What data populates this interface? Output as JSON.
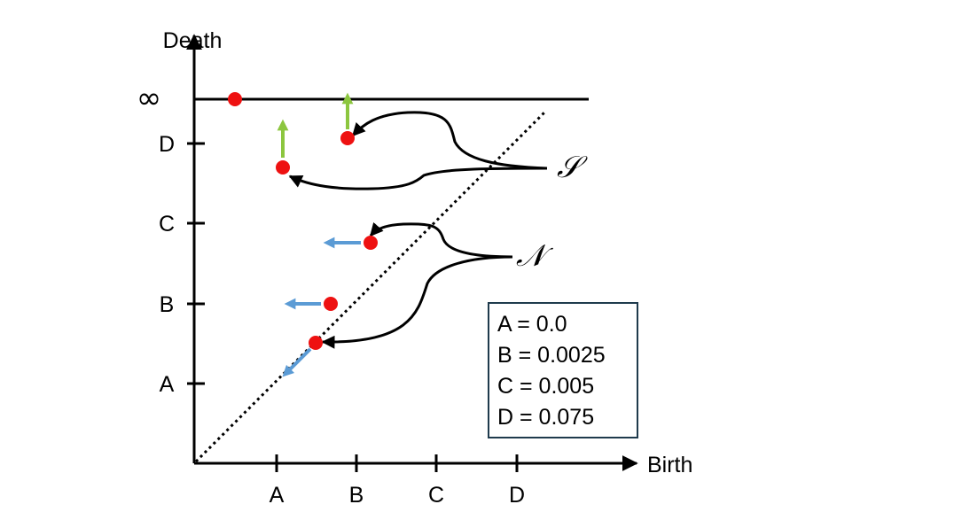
{
  "axes": {
    "y_title": "Death",
    "x_title": "Birth",
    "infinity_label": "∞",
    "x_ticks": [
      "A",
      "B",
      "C",
      "D"
    ],
    "y_ticks": [
      "A",
      "B",
      "C",
      "D"
    ]
  },
  "groups": {
    "s_label": "𝒮",
    "n_label": "𝒩"
  },
  "legend": {
    "entries": [
      "A = 0.0",
      "B = 0.0025",
      "C = 0.005",
      "D = 0.075"
    ]
  },
  "colors": {
    "points": "#ee1111",
    "up_arrows": "#8cc63f",
    "left_arrows": "#5b9bd5",
    "lines": "#000000",
    "legend_border": "#1f3b4d"
  }
}
